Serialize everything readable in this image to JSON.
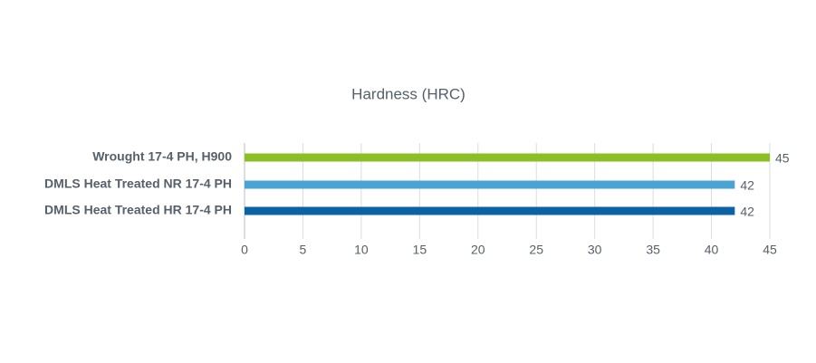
{
  "chart_data": {
    "type": "barh",
    "title": "Hardness (HRC)",
    "categories": [
      "Wrought 17-4 PH, H900",
      "DMLS Heat Treated NR 17-4 PH",
      "DMLS Heat Treated HR 17-4 PH"
    ],
    "values": [
      45,
      42,
      42
    ],
    "colors": [
      "#8cbf26",
      "#4ba3d3",
      "#0b63a5"
    ],
    "xlim": [
      0,
      45
    ],
    "xticks": [
      0,
      5,
      10,
      15,
      20,
      25,
      30,
      35,
      40,
      45
    ],
    "grid": true
  }
}
